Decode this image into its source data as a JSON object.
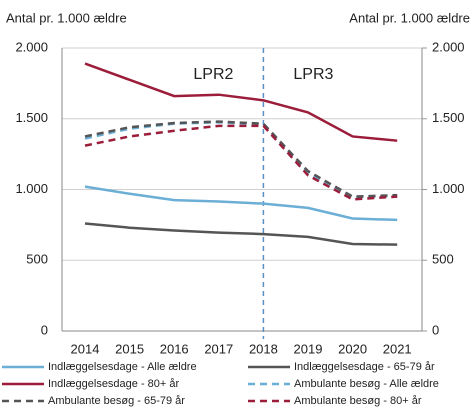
{
  "chart_data": {
    "type": "line",
    "y_label": "Antal pr. 1.000 ældre",
    "y2_label": "Antal pr. 1.000 ældre",
    "categories": [
      "2014",
      "2015",
      "2016",
      "2017",
      "2018",
      "2019",
      "2020",
      "2021"
    ],
    "ylim": [
      0,
      2000
    ],
    "yticks": [
      0,
      500,
      {
        "value": 1000,
        "label": "1.000"
      },
      {
        "value": 1500,
        "label": "1.500"
      },
      {
        "value": 2000,
        "label": "2.000"
      }
    ],
    "y2lim": [
      0,
      2000
    ],
    "y2ticks": [
      0,
      500,
      {
        "value": 1000,
        "label": "1.000"
      },
      {
        "value": 1500,
        "label": "1.500"
      },
      {
        "value": 2000,
        "label": "2.000"
      }
    ],
    "grid": true,
    "divider_at": "2018",
    "annotations": [
      "LPR2",
      "LPR3"
    ],
    "series": [
      {
        "name": "Indlæggelsesdage - Alle ældre",
        "color": "#6baed6",
        "dashed": false,
        "values": [
          1020,
          970,
          925,
          915,
          900,
          870,
          795,
          785
        ]
      },
      {
        "name": "Indlæggelsesdage - 65-79 år",
        "color": "#555555",
        "dashed": false,
        "values": [
          760,
          730,
          710,
          695,
          685,
          665,
          615,
          610
        ]
      },
      {
        "name": "Indlæggelsesdage - 80+ år",
        "color": "#9b1d3a",
        "dashed": false,
        "values": [
          1890,
          1775,
          1660,
          1670,
          1630,
          1545,
          1375,
          1345
        ]
      },
      {
        "name": "Ambulante besøg - Alle ældre",
        "color": "#6baed6",
        "dashed": true,
        "values": [
          1360,
          1430,
          1465,
          1475,
          1460,
          1120,
          945,
          955
        ]
      },
      {
        "name": "Ambulante besøg  - 65-79 år",
        "color": "#555555",
        "dashed": true,
        "values": [
          1375,
          1440,
          1470,
          1480,
          1465,
          1130,
          950,
          960
        ]
      },
      {
        "name": "Ambulante besøg - 80+ år",
        "color": "#9b1d3a",
        "dashed": true,
        "values": [
          1310,
          1375,
          1415,
          1450,
          1450,
          1100,
          930,
          950
        ]
      }
    ]
  }
}
